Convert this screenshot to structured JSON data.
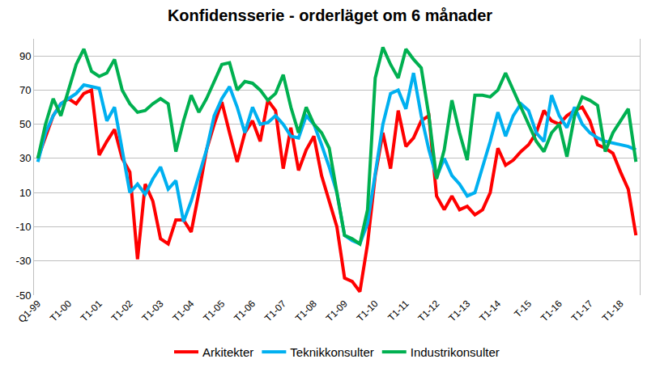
{
  "chart_data": {
    "type": "line",
    "title": "Konfidensserie - orderläget om 6 månader",
    "categories": [
      "Q1-99",
      null,
      null,
      null,
      "T1-00",
      null,
      null,
      null,
      "T1-01",
      null,
      null,
      null,
      "T1-02",
      null,
      null,
      null,
      "T1-03",
      null,
      null,
      null,
      "T1-04",
      null,
      null,
      null,
      "T1-05",
      null,
      null,
      null,
      "T1-06",
      null,
      null,
      null,
      "T1-07",
      null,
      null,
      null,
      "T1-08",
      null,
      null,
      null,
      "T1-09",
      null,
      null,
      null,
      "T1-10",
      null,
      null,
      null,
      "T1-11",
      null,
      null,
      null,
      "T1-12",
      null,
      null,
      null,
      "T1-13",
      null,
      null,
      null,
      "T1-14",
      null,
      null,
      null,
      "T-15",
      null,
      null,
      null,
      "T1-16",
      null,
      null,
      null,
      "T1-17",
      null,
      null,
      null,
      "T1-18",
      null,
      null
    ],
    "series": [
      {
        "name": "Arkitekter",
        "color": "#ff0000",
        "values": [
          30,
          42,
          55,
          62,
          65,
          62,
          68,
          70,
          32,
          40,
          47,
          30,
          22,
          -29,
          15,
          5,
          -17,
          -20,
          -6,
          -6,
          -13,
          10,
          35,
          50,
          63,
          45,
          28,
          45,
          52,
          40,
          64,
          58,
          24,
          48,
          23,
          35,
          43,
          20,
          5,
          -10,
          -40,
          -42,
          -48,
          -20,
          20,
          45,
          24,
          58,
          37,
          42,
          52,
          55,
          8,
          0,
          8,
          0,
          2,
          -3,
          0,
          10,
          36,
          26,
          29,
          34,
          38,
          45,
          58,
          52,
          50,
          55,
          58,
          60,
          52,
          38,
          36,
          33,
          22,
          12,
          -15
        ]
      },
      {
        "name": "Teknikkonsulter",
        "color": "#00b0f0",
        "values": [
          28,
          45,
          55,
          62,
          65,
          68,
          73,
          72,
          71,
          52,
          60,
          35,
          10,
          15,
          9,
          18,
          25,
          12,
          17,
          -7,
          5,
          20,
          35,
          55,
          65,
          72,
          60,
          45,
          60,
          50,
          51,
          55,
          50,
          43,
          42,
          55,
          50,
          38,
          25,
          10,
          -15,
          -18,
          -20,
          -8,
          20,
          50,
          68,
          70,
          59,
          80,
          55,
          35,
          19,
          30,
          20,
          15,
          8,
          10,
          25,
          40,
          57,
          43,
          55,
          62,
          58,
          45,
          40,
          67,
          55,
          48,
          60,
          50,
          45,
          42,
          40,
          39,
          38,
          37,
          35
        ]
      },
      {
        "name": "Industrikonsulter",
        "color": "#00b050",
        "values": [
          30,
          50,
          65,
          55,
          70,
          85,
          94,
          81,
          78,
          80,
          88,
          70,
          62,
          57,
          58,
          62,
          65,
          62,
          34,
          52,
          67,
          57,
          65,
          75,
          85,
          86,
          70,
          75,
          74,
          70,
          64,
          68,
          79,
          60,
          45,
          60,
          50,
          45,
          36,
          10,
          -15,
          -17,
          -20,
          0,
          77,
          95,
          85,
          77,
          94,
          88,
          83,
          55,
          18,
          35,
          64,
          45,
          29,
          67,
          67,
          66,
          70,
          80,
          70,
          60,
          50,
          40,
          34,
          45,
          50,
          31,
          55,
          66,
          64,
          61,
          34,
          45,
          52,
          59,
          28
        ]
      }
    ],
    "ylim": [
      -50,
      100
    ],
    "yticks": [
      -50,
      -30,
      -10,
      10,
      30,
      50,
      70,
      90
    ],
    "grid": true,
    "legend": "bottom"
  }
}
